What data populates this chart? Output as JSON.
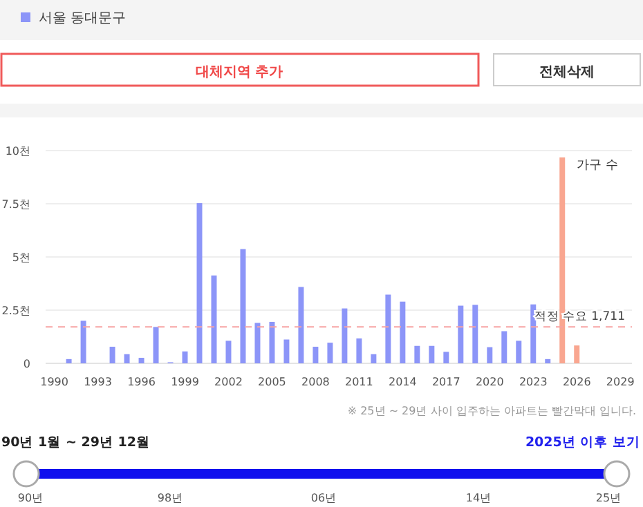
{
  "chart_data": {
    "type": "bar",
    "ylabel": "가구 수",
    "x": [
      1991,
      1992,
      1994,
      1995,
      1996,
      1997,
      1998,
      1999,
      2000,
      2001,
      2002,
      2003,
      2004,
      2005,
      2006,
      2007,
      2008,
      2009,
      2010,
      2011,
      2012,
      2013,
      2014,
      2015,
      2016,
      2017,
      2018,
      2019,
      2020,
      2021,
      2022,
      2023,
      2024,
      2025,
      2026
    ],
    "series": [
      {
        "name": "서울 동대문구",
        "color": "#8c95f8",
        "values": [
          0.2,
          2.0,
          0.78,
          0.43,
          0.26,
          1.71,
          0.05,
          0.56,
          7.53,
          4.13,
          1.06,
          5.37,
          1.9,
          1.95,
          1.12,
          3.59,
          0.78,
          0.97,
          2.58,
          1.17,
          0.43,
          3.23,
          2.9,
          0.82,
          0.82,
          0.54,
          2.71,
          2.75,
          0.76,
          1.51,
          1.06,
          2.77,
          0.2,
          9.68,
          0.84
        ],
        "colors": [
          "#8c95f8",
          "#8c95f8",
          "#8c95f8",
          "#8c95f8",
          "#8c95f8",
          "#8c95f8",
          "#8c95f8",
          "#8c95f8",
          "#8c95f8",
          "#8c95f8",
          "#8c95f8",
          "#8c95f8",
          "#8c95f8",
          "#8c95f8",
          "#8c95f8",
          "#8c95f8",
          "#8c95f8",
          "#8c95f8",
          "#8c95f8",
          "#8c95f8",
          "#8c95f8",
          "#8c95f8",
          "#8c95f8",
          "#8c95f8",
          "#8c95f8",
          "#8c95f8",
          "#8c95f8",
          "#8c95f8",
          "#8c95f8",
          "#8c95f8",
          "#8c95f8",
          "#8c95f8",
          "#8c95f8",
          "#f9a690",
          "#f9a690"
        ]
      }
    ],
    "xlim": [
      1989.4,
      2029.8
    ],
    "xticks": [
      1990,
      1993,
      1996,
      1999,
      2002,
      2005,
      2008,
      2011,
      2014,
      2017,
      2020,
      2023,
      2026,
      2029
    ],
    "ylim": [
      0,
      10
    ],
    "yticks": [
      0,
      {
        "value": 2.5,
        "label": "2.5천"
      },
      {
        "value": 5,
        "label": "5천"
      },
      {
        "value": 7.5,
        "label": "7.5천"
      },
      {
        "value": 10,
        "label": "10천"
      }
    ],
    "grid": "y",
    "legend": "top left",
    "ref_lines": [
      {
        "axis": "y",
        "value": 1.711,
        "label": "적정 수요 1,711",
        "color": "#f7a3a3",
        "line_style": "dashed"
      }
    ],
    "annotations": [
      "대체지역 추가",
      "전체삭제",
      "※ 25년 ~ 29년 사이 입주하는 아파트는 빨간막대 입니다.",
      "90년 1월 ~ 29년 12월",
      "2025년 이후 보기",
      "90년",
      "98년",
      "06년",
      "14년",
      "25년"
    ]
  }
}
